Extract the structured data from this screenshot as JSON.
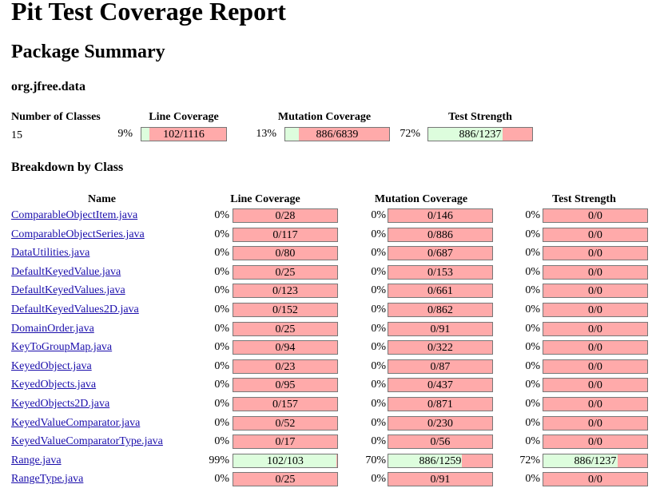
{
  "title": "Pit Test Coverage Report",
  "package_summary": {
    "heading": "Package Summary",
    "package_name": "org.jfree.data",
    "headers": {
      "classes": "Number of Classes",
      "line": "Line Coverage",
      "mutation": "Mutation Coverage",
      "strength": "Test Strength"
    },
    "number_of_classes": "15",
    "line": {
      "pct": "9%",
      "frac": "102/1116",
      "ratio": 0.091
    },
    "mutation": {
      "pct": "13%",
      "frac": "886/6839",
      "ratio": 0.13
    },
    "strength": {
      "pct": "72%",
      "frac": "886/1237",
      "ratio": 0.716
    }
  },
  "breakdown": {
    "heading": "Breakdown by Class",
    "headers": {
      "name": "Name",
      "line": "Line Coverage",
      "mutation": "Mutation Coverage",
      "strength": "Test Strength"
    },
    "rows": [
      {
        "name": "ComparableObjectItem.java",
        "line": {
          "pct": "0%",
          "frac": "0/28",
          "ratio": 0
        },
        "mutation": {
          "pct": "0%",
          "frac": "0/146",
          "ratio": 0
        },
        "strength": {
          "pct": "0%",
          "frac": "0/0",
          "ratio": 0
        }
      },
      {
        "name": "ComparableObjectSeries.java",
        "line": {
          "pct": "0%",
          "frac": "0/117",
          "ratio": 0
        },
        "mutation": {
          "pct": "0%",
          "frac": "0/886",
          "ratio": 0
        },
        "strength": {
          "pct": "0%",
          "frac": "0/0",
          "ratio": 0
        }
      },
      {
        "name": "DataUtilities.java",
        "line": {
          "pct": "0%",
          "frac": "0/80",
          "ratio": 0
        },
        "mutation": {
          "pct": "0%",
          "frac": "0/687",
          "ratio": 0
        },
        "strength": {
          "pct": "0%",
          "frac": "0/0",
          "ratio": 0
        }
      },
      {
        "name": "DefaultKeyedValue.java",
        "line": {
          "pct": "0%",
          "frac": "0/25",
          "ratio": 0
        },
        "mutation": {
          "pct": "0%",
          "frac": "0/153",
          "ratio": 0
        },
        "strength": {
          "pct": "0%",
          "frac": "0/0",
          "ratio": 0
        }
      },
      {
        "name": "DefaultKeyedValues.java",
        "line": {
          "pct": "0%",
          "frac": "0/123",
          "ratio": 0
        },
        "mutation": {
          "pct": "0%",
          "frac": "0/661",
          "ratio": 0
        },
        "strength": {
          "pct": "0%",
          "frac": "0/0",
          "ratio": 0
        }
      },
      {
        "name": "DefaultKeyedValues2D.java",
        "line": {
          "pct": "0%",
          "frac": "0/152",
          "ratio": 0
        },
        "mutation": {
          "pct": "0%",
          "frac": "0/862",
          "ratio": 0
        },
        "strength": {
          "pct": "0%",
          "frac": "0/0",
          "ratio": 0
        }
      },
      {
        "name": "DomainOrder.java",
        "line": {
          "pct": "0%",
          "frac": "0/25",
          "ratio": 0
        },
        "mutation": {
          "pct": "0%",
          "frac": "0/91",
          "ratio": 0
        },
        "strength": {
          "pct": "0%",
          "frac": "0/0",
          "ratio": 0
        }
      },
      {
        "name": "KeyToGroupMap.java",
        "line": {
          "pct": "0%",
          "frac": "0/94",
          "ratio": 0
        },
        "mutation": {
          "pct": "0%",
          "frac": "0/322",
          "ratio": 0
        },
        "strength": {
          "pct": "0%",
          "frac": "0/0",
          "ratio": 0
        }
      },
      {
        "name": "KeyedObject.java",
        "line": {
          "pct": "0%",
          "frac": "0/23",
          "ratio": 0
        },
        "mutation": {
          "pct": "0%",
          "frac": "0/87",
          "ratio": 0
        },
        "strength": {
          "pct": "0%",
          "frac": "0/0",
          "ratio": 0
        }
      },
      {
        "name": "KeyedObjects.java",
        "line": {
          "pct": "0%",
          "frac": "0/95",
          "ratio": 0
        },
        "mutation": {
          "pct": "0%",
          "frac": "0/437",
          "ratio": 0
        },
        "strength": {
          "pct": "0%",
          "frac": "0/0",
          "ratio": 0
        }
      },
      {
        "name": "KeyedObjects2D.java",
        "line": {
          "pct": "0%",
          "frac": "0/157",
          "ratio": 0
        },
        "mutation": {
          "pct": "0%",
          "frac": "0/871",
          "ratio": 0
        },
        "strength": {
          "pct": "0%",
          "frac": "0/0",
          "ratio": 0
        }
      },
      {
        "name": "KeyedValueComparator.java",
        "line": {
          "pct": "0%",
          "frac": "0/52",
          "ratio": 0
        },
        "mutation": {
          "pct": "0%",
          "frac": "0/230",
          "ratio": 0
        },
        "strength": {
          "pct": "0%",
          "frac": "0/0",
          "ratio": 0
        }
      },
      {
        "name": "KeyedValueComparatorType.java",
        "line": {
          "pct": "0%",
          "frac": "0/17",
          "ratio": 0
        },
        "mutation": {
          "pct": "0%",
          "frac": "0/56",
          "ratio": 0
        },
        "strength": {
          "pct": "0%",
          "frac": "0/0",
          "ratio": 0
        }
      },
      {
        "name": "Range.java",
        "line": {
          "pct": "99%",
          "frac": "102/103",
          "ratio": 0.99
        },
        "mutation": {
          "pct": "70%",
          "frac": "886/1259",
          "ratio": 0.704
        },
        "strength": {
          "pct": "72%",
          "frac": "886/1237",
          "ratio": 0.716
        }
      },
      {
        "name": "RangeType.java",
        "line": {
          "pct": "0%",
          "frac": "0/25",
          "ratio": 0
        },
        "mutation": {
          "pct": "0%",
          "frac": "0/91",
          "ratio": 0
        },
        "strength": {
          "pct": "0%",
          "frac": "0/0",
          "ratio": 0
        }
      }
    ]
  },
  "colors": {
    "covered": "#ddfddd",
    "uncovered": "#ffaaaa",
    "link": "#1a0dab"
  }
}
